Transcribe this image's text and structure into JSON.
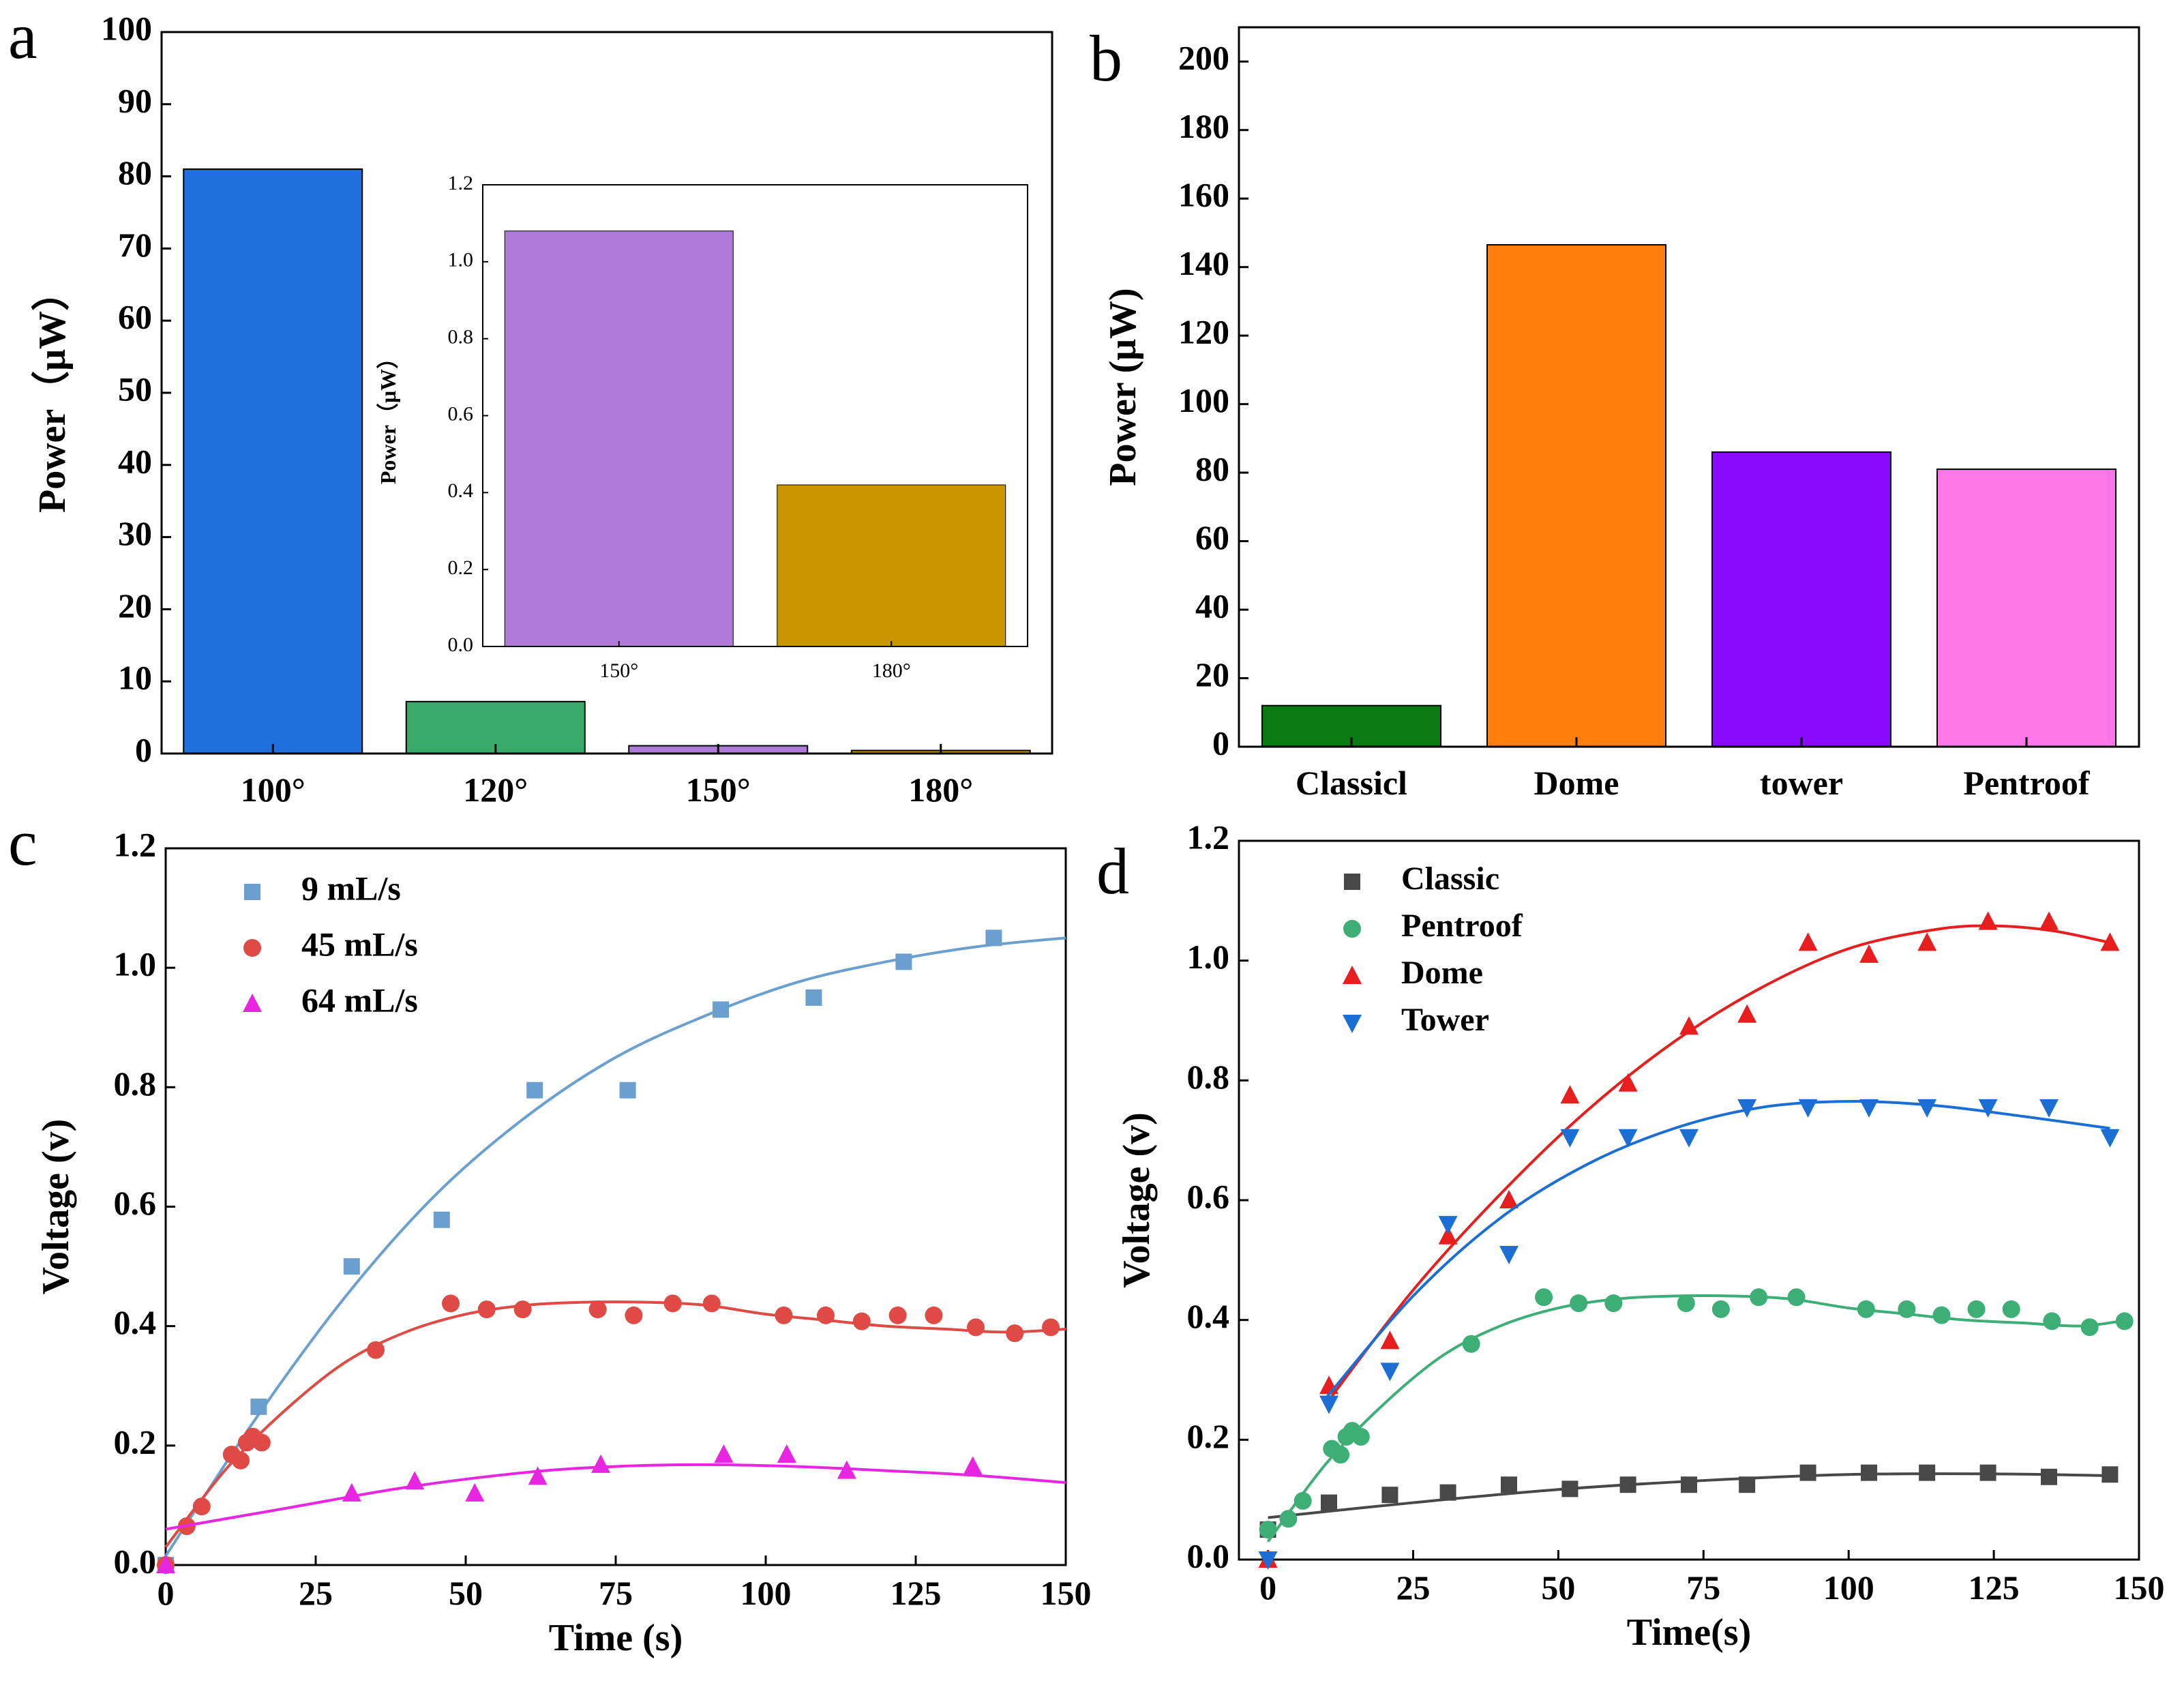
{
  "chart_data": [
    {
      "panel": "a",
      "type": "bar",
      "categories": [
        "100°",
        "120°",
        "150°",
        "180°"
      ],
      "values": [
        81,
        7.2,
        1.08,
        0.42
      ],
      "colors": [
        "#1f6fde",
        "#3aaa6b",
        "#b07ad8",
        "#c99600"
      ],
      "ylabel": "Power（μW）",
      "ylim": [
        0,
        100
      ],
      "yticks": [
        "0",
        "10",
        "20",
        "30",
        "40",
        "50",
        "60",
        "70",
        "80",
        "90",
        "100"
      ],
      "inset": {
        "type": "bar",
        "categories": [
          "150°",
          "180°"
        ],
        "values": [
          1.08,
          0.42
        ],
        "colors": [
          "#b07ad8",
          "#c99600"
        ],
        "ylabel": "Power（μW）",
        "ylim": [
          0,
          1.2
        ],
        "yticks": [
          "0.0",
          "0.2",
          "0.4",
          "0.6",
          "0.8",
          "1.0",
          "1.2"
        ]
      }
    },
    {
      "panel": "b",
      "type": "bar",
      "categories": [
        "Classicl",
        "Dome",
        "tower",
        "Pentroof"
      ],
      "values": [
        12,
        146.5,
        86,
        81
      ],
      "colors": [
        "#0a7a12",
        "#ff7f0e",
        "#8a0aff",
        "#ff77e8"
      ],
      "ylabel": "Power (μW)",
      "ylim": [
        0,
        210
      ],
      "yticks": [
        "0",
        "20",
        "40",
        "60",
        "80",
        "100",
        "120",
        "140",
        "160",
        "180",
        "200"
      ]
    },
    {
      "panel": "c",
      "type": "scatter",
      "xlabel": "Time (s)",
      "ylabel": "Voltage (v)",
      "xlim": [
        0,
        150
      ],
      "ylim": [
        0,
        1.2
      ],
      "xticks": [
        "0",
        "25",
        "50",
        "75",
        "100",
        "125",
        "150"
      ],
      "yticks": [
        "0.0",
        "0.2",
        "0.4",
        "0.6",
        "0.8",
        "1.0",
        "1.2"
      ],
      "series": [
        {
          "name": "9 mL/s",
          "marker": "square",
          "color": "#6a9fd0",
          "x": [
            0,
            15.5,
            31,
            46,
            61.5,
            77,
            92.5,
            108,
            123,
            138
          ],
          "y": [
            0,
            0.265,
            0.5,
            0.578,
            0.795,
            0.795,
            0.93,
            0.95,
            1.01,
            1.05
          ],
          "fit": [
            [
              0,
              0.015
            ],
            [
              15,
              0.245
            ],
            [
              30,
              0.45
            ],
            [
              45,
              0.62
            ],
            [
              60,
              0.75
            ],
            [
              75,
              0.85
            ],
            [
              90,
              0.92
            ],
            [
              105,
              0.975
            ],
            [
              120,
              1.01
            ],
            [
              135,
              1.035
            ],
            [
              150,
              1.05
            ]
          ]
        },
        {
          "name": "45 mL/s",
          "marker": "circle",
          "color": "#e04a45",
          "x": [
            0,
            3.5,
            6,
            11,
            12.5,
            13.5,
            14.5,
            16,
            35,
            47.5,
            53.5,
            59.5,
            72,
            78,
            84.5,
            91,
            103,
            110,
            116,
            122,
            128,
            135,
            141.5,
            147.5
          ],
          "y": [
            0,
            0.065,
            0.098,
            0.185,
            0.175,
            0.205,
            0.215,
            0.205,
            0.36,
            0.438,
            0.428,
            0.428,
            0.428,
            0.418,
            0.438,
            0.438,
            0.418,
            0.418,
            0.408,
            0.418,
            0.418,
            0.398,
            0.388,
            0.398
          ],
          "fit": [
            [
              0,
              0.03
            ],
            [
              10,
              0.16
            ],
            [
              20,
              0.26
            ],
            [
              30,
              0.34
            ],
            [
              40,
              0.39
            ],
            [
              50,
              0.42
            ],
            [
              60,
              0.435
            ],
            [
              70,
              0.44
            ],
            [
              80,
              0.44
            ],
            [
              90,
              0.435
            ],
            [
              100,
              0.42
            ],
            [
              110,
              0.41
            ],
            [
              120,
              0.4
            ],
            [
              130,
              0.395
            ],
            [
              140,
              0.39
            ],
            [
              150,
              0.395
            ]
          ]
        },
        {
          "name": "64 mL/s",
          "marker": "triangle",
          "color": "#e826e2",
          "x": [
            0,
            31,
            41.5,
            51.5,
            62,
            72.5,
            93,
            103.5,
            113.5,
            134.5
          ],
          "y": [
            0,
            0.12,
            0.14,
            0.12,
            0.148,
            0.168,
            0.185,
            0.185,
            0.158,
            0.165
          ],
          "fit": [
            [
              0,
              0.06
            ],
            [
              20,
              0.095
            ],
            [
              40,
              0.13
            ],
            [
              60,
              0.155
            ],
            [
              75,
              0.165
            ],
            [
              90,
              0.168
            ],
            [
              105,
              0.165
            ],
            [
              120,
              0.158
            ],
            [
              135,
              0.15
            ],
            [
              150,
              0.138
            ]
          ]
        }
      ]
    },
    {
      "panel": "d",
      "type": "scatter",
      "xlabel": "Time(s)",
      "ylabel": "Voltage (v)",
      "xlim": [
        -5,
        150
      ],
      "ylim": [
        0,
        1.2
      ],
      "xticks": [
        "0",
        "25",
        "50",
        "75",
        "100",
        "125",
        "150"
      ],
      "yticks": [
        "0.0",
        "0.2",
        "0.4",
        "0.6",
        "0.8",
        "1.0",
        "1.2"
      ],
      "series": [
        {
          "name": "Classic",
          "marker": "square",
          "color": "#484848",
          "x": [
            0,
            10.5,
            21,
            31,
            41.5,
            52,
            62,
            72.5,
            82.5,
            93,
            103.5,
            113.5,
            124,
            134.5,
            145
          ],
          "y": [
            0.05,
            0.095,
            0.108,
            0.112,
            0.125,
            0.118,
            0.125,
            0.125,
            0.125,
            0.145,
            0.145,
            0.145,
            0.145,
            0.138,
            0.142
          ],
          "fit": [
            [
              0,
              0.07
            ],
            [
              25,
              0.095
            ],
            [
              50,
              0.117
            ],
            [
              75,
              0.132
            ],
            [
              100,
              0.142
            ],
            [
              125,
              0.143
            ],
            [
              145,
              0.14
            ]
          ]
        },
        {
          "name": "Pentroof",
          "marker": "circle",
          "color": "#3cae76",
          "x": [
            0,
            3.5,
            6,
            11,
            12.5,
            13.5,
            14.5,
            16,
            35,
            47.5,
            53.5,
            59.5,
            72,
            78,
            84.5,
            91,
            103,
            110,
            116,
            122,
            128,
            135,
            141.5,
            147.5
          ],
          "y": [
            0.05,
            0.068,
            0.098,
            0.185,
            0.175,
            0.205,
            0.215,
            0.205,
            0.36,
            0.438,
            0.428,
            0.428,
            0.428,
            0.418,
            0.438,
            0.438,
            0.418,
            0.418,
            0.408,
            0.418,
            0.418,
            0.398,
            0.388,
            0.398
          ],
          "fit": [
            [
              0,
              0.03
            ],
            [
              10,
              0.16
            ],
            [
              20,
              0.26
            ],
            [
              30,
              0.34
            ],
            [
              40,
              0.39
            ],
            [
              50,
              0.42
            ],
            [
              60,
              0.435
            ],
            [
              70,
              0.44
            ],
            [
              80,
              0.44
            ],
            [
              90,
              0.435
            ],
            [
              100,
              0.42
            ],
            [
              110,
              0.41
            ],
            [
              120,
              0.4
            ],
            [
              130,
              0.395
            ],
            [
              140,
              0.39
            ],
            [
              148,
              0.4
            ]
          ]
        },
        {
          "name": "Dome",
          "marker": "triangle",
          "color": "#e81e1e",
          "x": [
            0,
            10.5,
            21,
            31,
            41.5,
            52,
            62,
            72.5,
            82.5,
            93,
            103.5,
            113.5,
            124,
            134.5,
            145
          ],
          "y": [
            0.0,
            0.29,
            0.365,
            0.54,
            0.6,
            0.775,
            0.795,
            0.89,
            0.91,
            1.03,
            1.01,
            1.03,
            1.065,
            1.065,
            1.03
          ],
          "fit": [
            [
              10,
              0.26
            ],
            [
              25,
              0.45
            ],
            [
              40,
              0.61
            ],
            [
              55,
              0.75
            ],
            [
              70,
              0.865
            ],
            [
              85,
              0.955
            ],
            [
              100,
              1.02
            ],
            [
              115,
              1.052
            ],
            [
              125,
              1.058
            ],
            [
              135,
              1.05
            ],
            [
              145,
              1.03
            ]
          ]
        },
        {
          "name": "Tower",
          "marker": "triangle-down",
          "color": "#1b6fd4",
          "x": [
            0,
            10.5,
            21,
            31,
            41.5,
            52,
            62,
            72.5,
            82.5,
            93,
            103.5,
            113.5,
            124,
            134.5,
            145
          ],
          "y": [
            0.0,
            0.26,
            0.315,
            0.56,
            0.51,
            0.705,
            0.705,
            0.705,
            0.755,
            0.755,
            0.755,
            0.755,
            0.755,
            0.755,
            0.705
          ],
          "fit": [
            [
              10,
              0.27
            ],
            [
              25,
              0.44
            ],
            [
              40,
              0.57
            ],
            [
              55,
              0.66
            ],
            [
              70,
              0.72
            ],
            [
              85,
              0.755
            ],
            [
              100,
              0.765
            ],
            [
              115,
              0.758
            ],
            [
              130,
              0.74
            ],
            [
              145,
              0.72
            ]
          ]
        }
      ]
    }
  ]
}
